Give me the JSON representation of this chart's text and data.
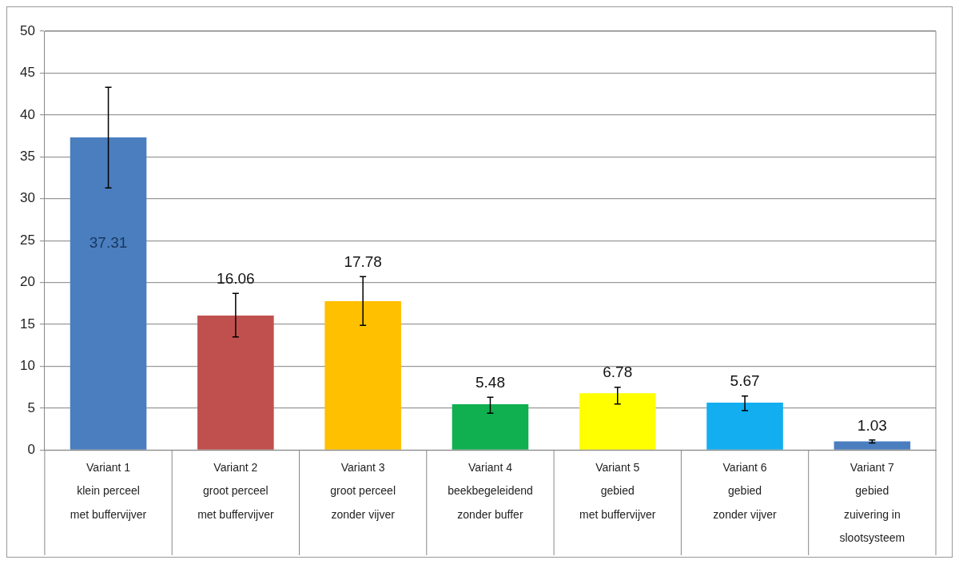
{
  "chart_data": {
    "type": "bar",
    "categories": [
      "Variant 1\nklein perceel\nmet buffervijver",
      "Variant 2\ngroot perceel\nmet buffervijver",
      "Variant 3\ngroot perceel\nzonder vijver",
      "Variant 4\nbeekbegeleidend\nzonder buffer",
      "Variant 5\ngebied\nmet buffervijver",
      "Variant 6\ngebied\nzonder vijver",
      "Variant 7\ngebied\nzuivering in\nslootsysteem"
    ],
    "values": [
      37.31,
      16.06,
      17.78,
      5.48,
      6.78,
      5.67,
      1.03
    ],
    "colors": [
      "#4a7ebf",
      "#c0504d",
      "#ffc000",
      "#10b050",
      "#ffff00",
      "#12aeef",
      "#4a7ebf"
    ],
    "errors": [
      [
        31.3,
        43.3
      ],
      [
        13.5,
        18.7
      ],
      [
        14.9,
        20.7
      ],
      [
        4.4,
        6.3
      ],
      [
        5.5,
        7.5
      ],
      [
        4.7,
        6.45
      ],
      [
        0.85,
        1.2
      ]
    ],
    "data_labels": true,
    "ylim": [
      0,
      50
    ],
    "yticks": [
      0,
      5,
      10,
      15,
      20,
      25,
      30,
      35,
      40,
      45,
      50
    ],
    "grid": "y",
    "legend": false
  }
}
